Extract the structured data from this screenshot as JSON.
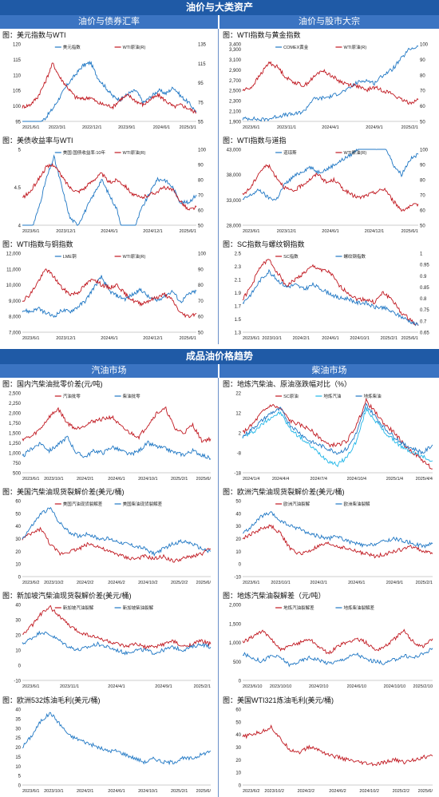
{
  "sections": [
    {
      "title": "油价与大类资产",
      "left": "油价与债券汇率",
      "right": "油价与股市大宗"
    },
    {
      "title": "成品油价格趋势",
      "left": "汽油市场",
      "right": "柴油市场"
    }
  ],
  "colors": {
    "blue": "#1f77c4",
    "red": "#c0171f",
    "header": "#1f5aa6",
    "subheader": "#3b74c2"
  },
  "chart_data": [
    {
      "type": "line",
      "title": "图：美元指数与WTI",
      "legend": [
        "美元指数",
        "WTI原油(R)"
      ],
      "xticks": [
        "2021/6/1",
        "2022/3/1",
        "2022/12/1",
        "2023/9/1",
        "2024/6/1",
        "2025/3/1"
      ],
      "yleft": [
        95,
        100,
        105,
        110,
        115,
        120
      ],
      "yright": [
        55,
        75,
        95,
        115,
        135
      ],
      "s1": [
        91,
        92,
        94,
        96,
        99,
        103,
        107,
        110,
        113,
        114,
        109,
        106,
        103,
        102,
        104,
        105,
        101,
        103,
        105,
        104,
        106,
        103,
        101,
        98
      ],
      "s2": [
        70,
        72,
        80,
        95,
        115,
        100,
        90,
        80,
        78,
        80,
        74,
        72,
        70,
        78,
        82,
        76,
        72,
        78,
        82,
        76,
        70,
        72,
        68,
        64
      ],
      "s1ax": "L",
      "s2ax": "R"
    },
    {
      "type": "line",
      "title": "图：WTI指数与黄金指数",
      "legend": [
        "COMEX黄金",
        "WTI原油(R)"
      ],
      "xticks": [
        "2023/6/1",
        "2023/11/1",
        "2024/4/1",
        "2024/9/1",
        "2025/2/1"
      ],
      "yleft": [
        1900,
        2100,
        2300,
        2500,
        2700,
        2900,
        3100,
        3300,
        3400
      ],
      "yright": [
        50,
        60,
        70,
        80,
        90,
        100
      ],
      "s1": [
        1950,
        1960,
        1930,
        1950,
        2000,
        2030,
        2040,
        2100,
        2330,
        2350,
        2380,
        2450,
        2520,
        2650,
        2700,
        2640,
        2800,
        2900,
        3100,
        3300,
        3350
      ],
      "s2": [
        70,
        72,
        80,
        88,
        85,
        78,
        75,
        73,
        78,
        83,
        80,
        76,
        74,
        73,
        70,
        72,
        70,
        68,
        64,
        62,
        64
      ],
      "s1ax": "L",
      "s2ax": "R"
    },
    {
      "type": "line",
      "title": "图：美债收益率与WTI",
      "legend": [
        "美国:国债收益率:10年",
        "WTI原油(R)"
      ],
      "xticks": [
        "2023/6/1",
        "2023/12/1",
        "2024/6/1",
        "2024/12/1",
        "2025/6/1"
      ],
      "yleft": [
        4,
        4.5,
        5
      ],
      "yright": [
        50,
        60,
        70,
        80,
        90,
        100
      ],
      "s1": [
        3.7,
        3.9,
        4.2,
        4.6,
        4.9,
        4.5,
        4.1,
        4.0,
        4.2,
        4.4,
        4.6,
        4.4,
        4.2,
        3.8,
        3.9,
        4.2,
        4.4,
        4.6,
        4.6,
        4.5,
        4.3,
        4.3,
        4.4
      ],
      "s2": [
        68,
        72,
        80,
        88,
        90,
        82,
        75,
        72,
        75,
        80,
        84,
        78,
        80,
        76,
        70,
        68,
        70,
        72,
        75,
        73,
        66,
        60,
        62
      ],
      "s1ax": "L",
      "s2ax": "R"
    },
    {
      "type": "line",
      "title": "图：WTI指数与道指",
      "legend": [
        "道琼斯",
        "WTI原油(R)"
      ],
      "xticks": [
        "2023/6/1",
        "2023/12/1",
        "2024/6/1",
        "2024/12/1",
        "2025/6/1"
      ],
      "yleft": [
        28000,
        33000,
        38000,
        43000
      ],
      "yright": [
        50,
        60,
        70,
        80,
        90,
        100
      ],
      "s1": [
        33000,
        34000,
        35000,
        33500,
        33000,
        36000,
        37500,
        38500,
        39500,
        38500,
        39000,
        40000,
        41000,
        42000,
        43500,
        44500,
        43000,
        44000,
        40000,
        38000,
        41000,
        42000
      ],
      "s2": [
        70,
        75,
        85,
        90,
        82,
        75,
        72,
        76,
        80,
        84,
        78,
        80,
        74,
        70,
        68,
        70,
        72,
        74,
        66,
        60,
        62,
        64
      ],
      "s1ax": "L",
      "s2ax": "R"
    },
    {
      "type": "line",
      "title": "图：WTI指数与铜指数",
      "legend": [
        "LME铜",
        "WTI原油(R)"
      ],
      "xticks": [
        "2023/6/1",
        "2023/12/1",
        "2024/6/1",
        "2024/12/1",
        "2025/6/1"
      ],
      "yleft": [
        7000,
        8000,
        9000,
        10000,
        11000,
        12000
      ],
      "yright": [
        50,
        60,
        70,
        80,
        90,
        100
      ],
      "s1": [
        8400,
        8300,
        8500,
        8200,
        8000,
        8400,
        8300,
        8600,
        9000,
        9800,
        10500,
        9600,
        9300,
        9100,
        9400,
        9700,
        9200,
        9000,
        9300,
        9600,
        8900,
        9400,
        9600
      ],
      "s2": [
        70,
        74,
        82,
        90,
        85,
        78,
        74,
        75,
        80,
        84,
        80,
        78,
        80,
        74,
        70,
        68,
        70,
        72,
        74,
        70,
        62,
        60,
        62
      ],
      "s1ax": "L",
      "s2ax": "R"
    },
    {
      "type": "line",
      "title": "图：SC指数与螺纹钢指数",
      "legend": [
        "SC指数",
        "螺纹钢指数"
      ],
      "xticks": [
        "2023/6/1",
        "2023/10/1",
        "2024/2/1",
        "2024/6/1",
        "2024/10/1",
        "2025/2/1",
        "2025/6/1"
      ],
      "yleft": [
        1.3,
        1.5,
        1.7,
        1.9,
        2.1,
        2.3,
        2.5
      ],
      "yright": [
        0.65,
        0.7,
        0.75,
        0.8,
        0.85,
        0.9,
        0.95,
        1.0
      ],
      "s1": [
        1.8,
        2.0,
        2.3,
        2.4,
        2.2,
        2.0,
        2.1,
        2.2,
        2.3,
        2.25,
        2.2,
        2.0,
        1.9,
        1.8,
        1.8,
        1.75,
        1.9,
        1.8,
        1.6,
        1.5,
        1.4
      ],
      "s2": [
        0.78,
        0.82,
        0.88,
        0.92,
        0.88,
        0.85,
        0.86,
        0.84,
        0.86,
        0.84,
        0.82,
        0.8,
        0.8,
        0.78,
        0.78,
        0.76,
        0.76,
        0.74,
        0.72,
        0.7,
        0.68
      ],
      "s1ax": "L",
      "s2ax": "R"
    },
    {
      "type": "line",
      "title": "图：国内汽柴油批零价差(元/吨)",
      "legend": [
        "汽油批零",
        "柴油批零"
      ],
      "xticks": [
        "2023/6/1",
        "2023/10/1",
        "2024/2/1",
        "2024/6/1",
        "2024/10/1",
        "2025/2/1",
        "2025/6/"
      ],
      "yleft": [
        500,
        750,
        1000,
        1250,
        1500,
        1750,
        2000,
        2250,
        2500
      ],
      "yright": null,
      "s1": [
        1350,
        1400,
        1600,
        1900,
        2100,
        1750,
        1600,
        1700,
        1800,
        1850,
        1900,
        1650,
        1500,
        1400,
        1700,
        2000,
        2100,
        1600,
        1500,
        1700,
        1300,
        1350
      ],
      "s2": [
        900,
        1100,
        1250,
        1050,
        1200,
        1400,
        1000,
        900,
        1050,
        1000,
        1150,
        1050,
        950,
        1050,
        1250,
        1150,
        1100,
        1000,
        950,
        1050,
        950,
        850
      ],
      "s1ax": "L",
      "s2ax": "L"
    },
    {
      "type": "line",
      "title": "图：地炼汽柴油、原油涨跌幅对比（%）",
      "legend": [
        "SC原油",
        "地炼汽油",
        "地炼柴油"
      ],
      "xticks": [
        "2024/1/4",
        "2024/4/4",
        "2024/7/4",
        "2024/10/4",
        "2025/1/4",
        "2025/4/4"
      ],
      "yleft": [
        -18,
        -8,
        2,
        12,
        22
      ],
      "yright": null,
      "s1": [
        2,
        6,
        12,
        16,
        14,
        8,
        6,
        4,
        0,
        -4,
        -4,
        -2,
        6,
        18,
        12,
        6,
        2,
        -4,
        -8,
        -12,
        -16
      ],
      "s2": [
        0,
        2,
        6,
        10,
        12,
        4,
        0,
        -4,
        -8,
        -12,
        -14,
        -10,
        -2,
        14,
        8,
        2,
        -2,
        -6,
        -8,
        -10,
        -12
      ],
      "s3": [
        0,
        4,
        8,
        12,
        14,
        6,
        2,
        -2,
        -4,
        -6,
        -8,
        -6,
        2,
        16,
        10,
        4,
        0,
        -4,
        -6,
        -8,
        -4
      ],
      "s1ax": "L",
      "s2ax": "L",
      "s3ax": "L"
    },
    {
      "type": "line",
      "title": "图：美国汽柴油现货裂解价差(美元/桶)",
      "legend": [
        "美国汽油现货裂解差",
        "美国柴油现货裂解差"
      ],
      "xticks": [
        "2023/6/2",
        "2023/10/2",
        "2024/2/2",
        "2024/6/2",
        "2024/10/2",
        "2025/2/2",
        "2025/6/"
      ],
      "yleft": [
        0,
        10,
        20,
        30,
        40,
        50,
        60
      ],
      "yright": null,
      "s1": [
        30,
        34,
        38,
        25,
        18,
        20,
        22,
        26,
        24,
        20,
        18,
        15,
        14,
        16,
        14,
        16,
        12,
        14,
        16,
        18,
        22
      ],
      "s2": [
        30,
        40,
        50,
        54,
        42,
        35,
        32,
        34,
        30,
        30,
        28,
        26,
        24,
        22,
        18,
        22,
        26,
        28,
        26,
        22,
        20
      ],
      "s1ax": "L",
      "s2ax": "L"
    },
    {
      "type": "line",
      "title": "图：欧洲汽柴油现货裂解价差(美元/桶)",
      "legend": [
        "欧洲汽油裂解",
        "欧洲柴油裂解"
      ],
      "xticks": [
        "2023/6/1",
        "2023/10/1",
        "2024/2/1",
        "2024/6/1",
        "2024/9/1",
        "2025/2/1"
      ],
      "yleft": [
        -10,
        0,
        10,
        20,
        30,
        40,
        50
      ],
      "yright": null,
      "s1": [
        20,
        24,
        28,
        30,
        24,
        12,
        8,
        10,
        14,
        16,
        14,
        12,
        10,
        8,
        6,
        8,
        10,
        12,
        14,
        10,
        8
      ],
      "s2": [
        24,
        30,
        38,
        40,
        34,
        30,
        28,
        24,
        22,
        20,
        22,
        18,
        16,
        14,
        16,
        18,
        20,
        18,
        16,
        14,
        16
      ],
      "s1ax": "L",
      "s2ax": "L"
    },
    {
      "type": "line",
      "title": "图：新加坡汽柴油现货裂解价差(美元/桶)",
      "legend": [
        "新加坡汽油裂解",
        "新加坡柴油裂解"
      ],
      "xticks": [
        "2023/6/1",
        "2023/11/1",
        "2024/4/1",
        "2024/9/1",
        "2025/2/1"
      ],
      "yleft": [
        -10,
        0,
        10,
        20,
        30,
        40
      ],
      "yright": null,
      "s1": [
        20,
        26,
        34,
        38,
        32,
        26,
        22,
        20,
        18,
        16,
        14,
        12,
        14,
        12,
        12,
        14,
        16,
        12,
        14,
        16,
        14
      ],
      "s2": [
        14,
        18,
        22,
        20,
        16,
        12,
        10,
        12,
        14,
        12,
        10,
        8,
        10,
        10,
        8,
        10,
        12,
        10,
        12,
        14,
        12
      ],
      "s1ax": "L",
      "s2ax": "L"
    },
    {
      "type": "line",
      "title": "图：地炼汽柴油裂解差（元/吨）",
      "legend": [
        "地炼汽油裂解差",
        "地炼柴油裂解差"
      ],
      "xticks": [
        "2023/6/10",
        "2023/10/10",
        "2024/2/10",
        "2024/6/10",
        "2024/10/10",
        "2025/2/10"
      ],
      "yleft": [
        0,
        500,
        1000,
        1500,
        2000
      ],
      "yright": null,
      "s1": [
        1000,
        1150,
        1300,
        1100,
        800,
        900,
        1000,
        1100,
        900,
        700,
        900,
        1000,
        1100,
        1000,
        800,
        900,
        1100,
        1300,
        1000,
        900,
        1100
      ],
      "s2": [
        700,
        600,
        500,
        650,
        600,
        400,
        500,
        600,
        550,
        450,
        500,
        600,
        700,
        550,
        500,
        450,
        550,
        650,
        600,
        700,
        850
      ],
      "s1ax": "L",
      "s2ax": "L"
    },
    {
      "type": "line",
      "title": "图：欧洲532炼油毛利(美元/桶)",
      "legend": [],
      "xticks": [
        "2023/6/1",
        "2023/10/1",
        "2024/2/1",
        "2024/6/1",
        "2024/10/1",
        "2025/2/1",
        "2025/6/"
      ],
      "yleft": [
        0,
        5,
        10,
        15,
        20,
        25,
        30,
        35,
        40
      ],
      "yright": null,
      "s1": [
        20,
        26,
        34,
        38,
        32,
        26,
        24,
        22,
        20,
        18,
        18,
        16,
        14,
        12,
        14,
        12,
        12,
        14,
        14,
        16,
        18
      ],
      "s1ax": "L"
    },
    {
      "type": "line",
      "title": "图：美国WTI321炼油毛利(美元/桶)",
      "legend": [],
      "xticks": [
        "2023/6/2",
        "2023/10/2",
        "2024/2/2",
        "2024/6/2",
        "2024/10/2",
        "2025/2/2",
        "2025/6/"
      ],
      "yleft": [
        0,
        10,
        20,
        30,
        40,
        50,
        60
      ],
      "yright": null,
      "s1": [
        38,
        40,
        42,
        46,
        36,
        28,
        26,
        30,
        28,
        24,
        22,
        20,
        18,
        17,
        16,
        18,
        20,
        18,
        20,
        22,
        23
      ],
      "s1ax": "L",
      "s1color": "red"
    }
  ]
}
